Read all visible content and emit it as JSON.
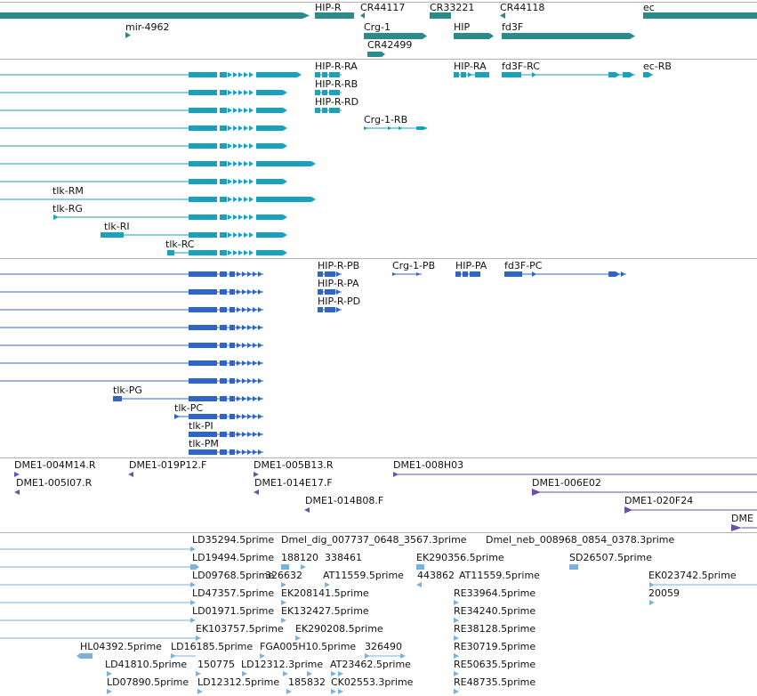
{
  "colors": {
    "gene": "#2b8a8a",
    "mrna": "#1aa0c0",
    "protein": "#2f64c8",
    "clone": "#6a4fb0",
    "est": "#7ab2dc",
    "separator": "#b5b5b5"
  },
  "tracks": {
    "genes": {
      "labels": [
        {
          "id": "g1",
          "text": "HIP-R"
        },
        {
          "id": "g2",
          "text": "CR44117"
        },
        {
          "id": "g3",
          "text": "CR33221"
        },
        {
          "id": "g4",
          "text": "CR44118"
        },
        {
          "id": "g5",
          "text": "ec"
        },
        {
          "id": "g6",
          "text": "mir-4962"
        },
        {
          "id": "g7",
          "text": "Crg-1"
        },
        {
          "id": "g8",
          "text": "HIP"
        },
        {
          "id": "g9",
          "text": "fd3F"
        },
        {
          "id": "g10",
          "text": "CR42499"
        }
      ]
    },
    "transcripts": {
      "labels": [
        {
          "id": "t1",
          "text": "HIP-R-RA"
        },
        {
          "id": "t2",
          "text": "HIP-RA"
        },
        {
          "id": "t3",
          "text": "fd3F-RC"
        },
        {
          "id": "t4",
          "text": "ec-RB"
        },
        {
          "id": "t5",
          "text": "HIP-R-RB"
        },
        {
          "id": "t6",
          "text": "HIP-R-RD"
        },
        {
          "id": "t7",
          "text": "Crg-1-RB"
        },
        {
          "id": "t8",
          "text": "tlk-RM"
        },
        {
          "id": "t9",
          "text": "tlk-RG"
        },
        {
          "id": "t10",
          "text": "tlk-RI"
        },
        {
          "id": "t11",
          "text": "tlk-RC"
        }
      ]
    },
    "proteins": {
      "labels": [
        {
          "id": "p1",
          "text": "HIP-R-PB"
        },
        {
          "id": "p2",
          "text": "Crg-1-PB"
        },
        {
          "id": "p3",
          "text": "HIP-PA"
        },
        {
          "id": "p4",
          "text": "fd3F-PC"
        },
        {
          "id": "p5",
          "text": "HIP-R-PA"
        },
        {
          "id": "p6",
          "text": "HIP-R-PD"
        },
        {
          "id": "p7",
          "text": "tlk-PG"
        },
        {
          "id": "p8",
          "text": "tlk-PC"
        },
        {
          "id": "p9",
          "text": "tlk-PI"
        },
        {
          "id": "p10",
          "text": "tlk-PM"
        }
      ]
    },
    "clones": {
      "labels": [
        {
          "id": "c1",
          "text": "DME1-004M14.R"
        },
        {
          "id": "c2",
          "text": "DME1-019P12.F"
        },
        {
          "id": "c3",
          "text": "DME1-005B13.R"
        },
        {
          "id": "c4",
          "text": "DME1-008H03"
        },
        {
          "id": "c5",
          "text": "DME1-005I07.R"
        },
        {
          "id": "c6",
          "text": "DME1-014E17.F"
        },
        {
          "id": "c7",
          "text": "DME1-006E02"
        },
        {
          "id": "c8",
          "text": "DME1-014B08.F"
        },
        {
          "id": "c9",
          "text": "DME1-020F24"
        },
        {
          "id": "c10",
          "text": "DME"
        }
      ]
    },
    "ests": {
      "labels": [
        {
          "id": "e1",
          "text": "LD35294.5prime"
        },
        {
          "id": "e2",
          "text": "Dmel_dig_007737_0648_3567.3prime"
        },
        {
          "id": "e3",
          "text": "Dmel_neb_008968_0854_0378.3prime"
        },
        {
          "id": "e4",
          "text": "LD19494.5prime"
        },
        {
          "id": "e5",
          "text": "188120"
        },
        {
          "id": "e6",
          "text": "338461"
        },
        {
          "id": "e7",
          "text": "EK290356.5prime"
        },
        {
          "id": "e8",
          "text": "SD26507.5prime"
        },
        {
          "id": "e9",
          "text": "LD09768.5prime"
        },
        {
          "id": "e10",
          "text": "326632"
        },
        {
          "id": "e11",
          "text": "AT11559.5prime"
        },
        {
          "id": "e12",
          "text": "443862"
        },
        {
          "id": "e13",
          "text": "AT11559.5prime"
        },
        {
          "id": "e14",
          "text": "EK023742.5prime"
        },
        {
          "id": "e15",
          "text": "LD47357.5prime"
        },
        {
          "id": "e16",
          "text": "EK208141.5prime"
        },
        {
          "id": "e17",
          "text": "RE33964.5prime"
        },
        {
          "id": "e18",
          "text": "20059"
        },
        {
          "id": "e19",
          "text": "LD01971.5prime"
        },
        {
          "id": "e20",
          "text": "EK132427.5prime"
        },
        {
          "id": "e21",
          "text": "RE34240.5prime"
        },
        {
          "id": "e22",
          "text": "EK103757.5prime"
        },
        {
          "id": "e23",
          "text": "EK290208.5prime"
        },
        {
          "id": "e24",
          "text": "RE38128.5prime"
        },
        {
          "id": "e25",
          "text": "HL04392.5prime"
        },
        {
          "id": "e26",
          "text": "LD16185.5prime"
        },
        {
          "id": "e27",
          "text": "FGA005H10.5prime"
        },
        {
          "id": "e28",
          "text": "326490"
        },
        {
          "id": "e29",
          "text": "RE30719.5prime"
        },
        {
          "id": "e30",
          "text": "LD41810.5prime"
        },
        {
          "id": "e31",
          "text": "150775"
        },
        {
          "id": "e32",
          "text": "LD12312.3prime"
        },
        {
          "id": "e33",
          "text": "AT23462.5prime"
        },
        {
          "id": "e34",
          "text": "RE50635.5prime"
        },
        {
          "id": "e35",
          "text": "LD07890.5prime"
        },
        {
          "id": "e36",
          "text": "LD12312.5prime"
        },
        {
          "id": "e37",
          "text": "185832"
        },
        {
          "id": "e38",
          "text": "CK02553.3prime"
        },
        {
          "id": "e39",
          "text": "RE48735.5prime"
        }
      ]
    }
  }
}
